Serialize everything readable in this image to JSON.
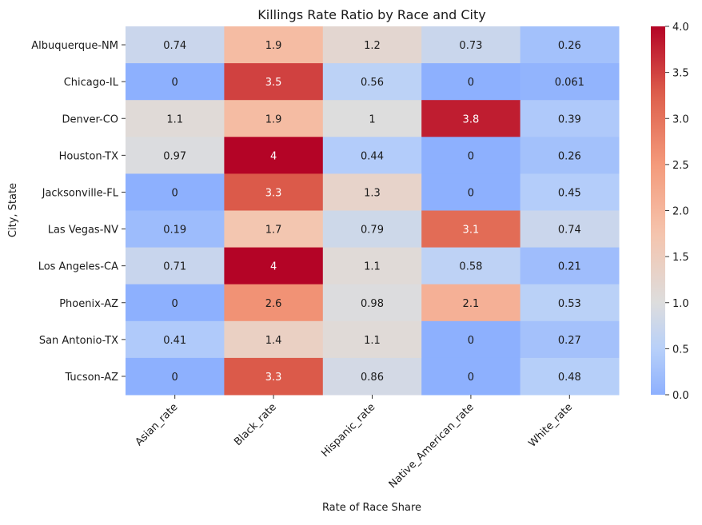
{
  "chart_data": {
    "type": "heatmap",
    "title": "Killings Rate Ratio by Race and City",
    "xlabel": "Rate of Race Share",
    "ylabel": "City, State",
    "columns": [
      "Asian_rate",
      "Black_rate",
      "Hispanic_rate",
      "Native_American_rate",
      "White_rate"
    ],
    "rows": [
      "Albuquerque-NM",
      "Chicago-IL",
      "Denver-CO",
      "Houston-TX",
      "Jacksonville-FL",
      "Las Vegas-NV",
      "Los Angeles-CA",
      "Phoenix-AZ",
      "San Antonio-TX",
      "Tucson-AZ"
    ],
    "values": [
      [
        0.74,
        1.9,
        1.2,
        0.73,
        0.26
      ],
      [
        0,
        3.5,
        0.56,
        0,
        0.061
      ],
      [
        1.1,
        1.9,
        1,
        3.8,
        0.39
      ],
      [
        0.97,
        4,
        0.44,
        0,
        0.26
      ],
      [
        0,
        3.3,
        1.3,
        0,
        0.45
      ],
      [
        0.19,
        1.7,
        0.79,
        3.1,
        0.74
      ],
      [
        0.71,
        4,
        1.1,
        0.58,
        0.21
      ],
      [
        0,
        2.6,
        0.98,
        2.1,
        0.53
      ],
      [
        0.41,
        1.4,
        1.1,
        0,
        0.27
      ],
      [
        0,
        3.3,
        0.86,
        0,
        0.48
      ]
    ],
    "colormap": "coolwarm",
    "vmin": 0,
    "vmax": 4,
    "colorbar_ticks": [
      "0.0",
      "0.5",
      "1.0",
      "1.5",
      "2.0",
      "2.5",
      "3.0",
      "3.5",
      "4.0"
    ],
    "annotations": "cell values"
  }
}
